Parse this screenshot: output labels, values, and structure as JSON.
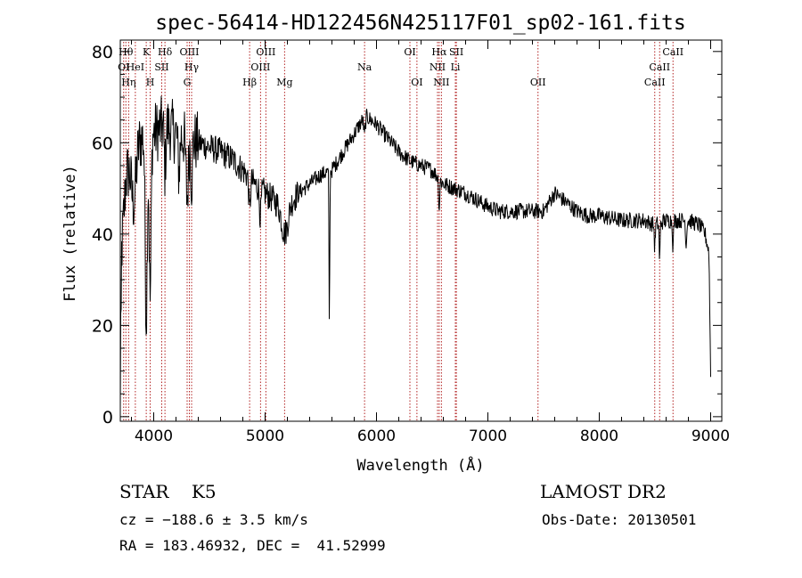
{
  "chart_data": {
    "type": "line",
    "title": "spec-56414-HD122456N425117F01_sp02-161.fits",
    "xlabel": "Wavelength (Å)",
    "ylabel": "Flux (relative)",
    "xlim": [
      3700,
      9100
    ],
    "ylim": [
      -1,
      82.5
    ],
    "xticks": [
      4000,
      5000,
      6000,
      7000,
      8000,
      9000
    ],
    "yticks": [
      0,
      20,
      40,
      60,
      80
    ],
    "grid": false,
    "line_color": "#000000",
    "marker_color": "#b22222",
    "lines": [
      {
        "label": "O I",
        "x": 3730,
        "row": 1
      },
      {
        "label": "Hθ",
        "x": 3750,
        "row": 0
      },
      {
        "label": "Hη",
        "x": 3775,
        "row": 2
      },
      {
        "label": "He I",
        "x": 3835,
        "row": 1
      },
      {
        "label": "K",
        "x": 3933,
        "row": 0
      },
      {
        "label": "H",
        "x": 3968,
        "row": 2
      },
      {
        "label": "S II",
        "x": 4072,
        "row": 1
      },
      {
        "label": "Hδ",
        "x": 4101,
        "row": 0
      },
      {
        "label": "O III",
        "x": 4320,
        "row": 0
      },
      {
        "label": "Hγ",
        "x": 4340,
        "row": 1
      },
      {
        "label": "G",
        "x": 4300,
        "row": 2
      },
      {
        "label": "Hβ",
        "x": 4861,
        "row": 2
      },
      {
        "label": "O III",
        "x": 5007,
        "row": 0
      },
      {
        "label": "O III",
        "x": 4959,
        "row": 1
      },
      {
        "label": "Mg",
        "x": 5175,
        "row": 2
      },
      {
        "label": "Na",
        "x": 5893,
        "row": 1
      },
      {
        "label": "O I",
        "x": 6300,
        "row": 0
      },
      {
        "label": "O I",
        "x": 6363,
        "row": 2
      },
      {
        "label": "Hα",
        "x": 6563,
        "row": 0
      },
      {
        "label": "N II",
        "x": 6548,
        "row": 1
      },
      {
        "label": "N II",
        "x": 6583,
        "row": 2
      },
      {
        "label": "S II",
        "x": 6717,
        "row": 0
      },
      {
        "label": "Li",
        "x": 6708,
        "row": 1
      },
      {
        "label": "O II",
        "x": 7450,
        "row": 2
      },
      {
        "label": "Ca II",
        "x": 8662,
        "row": 0
      },
      {
        "label": "Ca II",
        "x": 8542,
        "row": 1
      },
      {
        "label": "Ca II",
        "x": 8498,
        "row": 2
      }
    ],
    "continuum": [
      [
        3700,
        0
      ],
      [
        3712,
        36
      ],
      [
        3750,
        52
      ],
      [
        3800,
        58
      ],
      [
        3850,
        60
      ],
      [
        3900,
        61
      ],
      [
        4000,
        62
      ],
      [
        4100,
        64
      ],
      [
        4200,
        62
      ],
      [
        4300,
        61
      ],
      [
        4400,
        60
      ],
      [
        4500,
        59
      ],
      [
        4600,
        58
      ],
      [
        4700,
        56.5
      ],
      [
        4800,
        54
      ],
      [
        4900,
        51
      ],
      [
        5000,
        49
      ],
      [
        5100,
        47
      ],
      [
        5200,
        46
      ],
      [
        5300,
        49
      ],
      [
        5400,
        51
      ],
      [
        5500,
        53
      ],
      [
        5600,
        54
      ],
      [
        5700,
        58
      ],
      [
        5800,
        62
      ],
      [
        5900,
        66
      ],
      [
        6000,
        64
      ],
      [
        6100,
        61
      ],
      [
        6200,
        58
      ],
      [
        6300,
        56
      ],
      [
        6400,
        55
      ],
      [
        6500,
        54
      ],
      [
        6600,
        51
      ],
      [
        6700,
        50
      ],
      [
        6800,
        49
      ],
      [
        6900,
        47.5
      ],
      [
        7000,
        46
      ],
      [
        7100,
        45
      ],
      [
        7200,
        45
      ],
      [
        7300,
        45
      ],
      [
        7400,
        45
      ],
      [
        7500,
        45
      ],
      [
        7600,
        49
      ],
      [
        7700,
        47
      ],
      [
        7800,
        45
      ],
      [
        7900,
        44
      ],
      [
        8000,
        44
      ],
      [
        8100,
        43.5
      ],
      [
        8200,
        43
      ],
      [
        8300,
        43
      ],
      [
        8400,
        43
      ],
      [
        8500,
        42
      ],
      [
        8600,
        43
      ],
      [
        8700,
        43
      ],
      [
        8800,
        43
      ],
      [
        8900,
        42
      ],
      [
        8950,
        40
      ],
      [
        8985,
        36
      ],
      [
        9000,
        9
      ]
    ],
    "absorption_features": [
      [
        3820,
        30,
        12
      ],
      [
        3933,
        13,
        40
      ],
      [
        3968,
        12,
        36
      ],
      [
        4101,
        10,
        10
      ],
      [
        4226,
        12,
        8
      ],
      [
        4300,
        15,
        13
      ],
      [
        4340,
        10,
        9
      ],
      [
        4861,
        10,
        7
      ],
      [
        4957,
        10,
        6
      ],
      [
        5175,
        40,
        6
      ],
      [
        5577,
        5,
        33
      ],
      [
        5893,
        10,
        4
      ],
      [
        6563,
        6,
        7
      ],
      [
        8498,
        6,
        5
      ],
      [
        8542,
        6,
        8
      ],
      [
        8662,
        6,
        6
      ],
      [
        8780,
        6,
        6
      ]
    ]
  },
  "info": {
    "class_label": "STAR    K5",
    "survey": "LAMOST DR2",
    "redshift": "cz = −188.6 ± 3.5 km/s",
    "obs_date": "Obs-Date: 20130501",
    "coords": "RA = 183.46932, DEC =  41.52999"
  }
}
